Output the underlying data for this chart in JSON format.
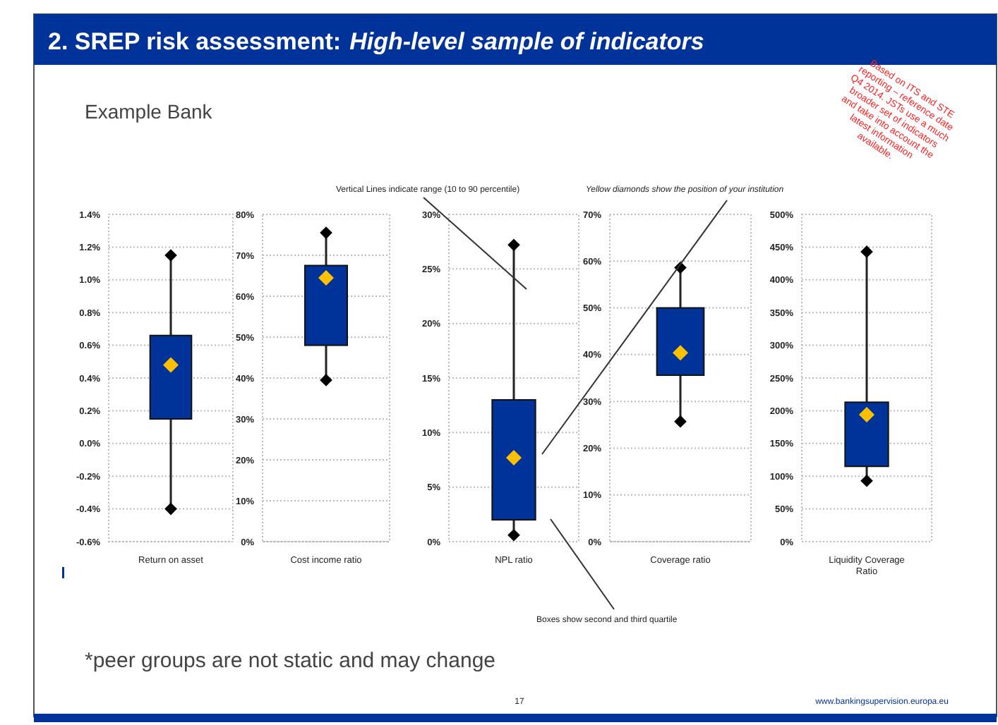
{
  "chart_data": [
    {
      "type": "box",
      "title": "2. SREP risk assessment: High-level sample of indicators",
      "subtitle": "Example Bank",
      "annotations": [
        "Vertical Lines indicate range (10 to 90 percentile)",
        "Yellow diamonds show the position of your institution",
        "Boxes show second and third quartile",
        "*peer groups are not static and may change",
        "17",
        "www.bankingsupervision.europa.eu",
        "Based on ITS and STE reporting – reference date Q4 2014. JSTs use a much broader set of indicators and take into account the latest information available."
      ],
      "categories": [
        "Return on asset"
      ],
      "ylim": [
        -0.6,
        1.4
      ],
      "yticks": [
        {
          "value": -0.6,
          "label": "-0.6%"
        },
        {
          "value": -0.4,
          "label": "-0.4%"
        },
        {
          "value": -0.2,
          "label": "-0.2%"
        },
        {
          "value": 0,
          "label": "0.0%"
        },
        {
          "value": 0.2,
          "label": "0.2%"
        },
        {
          "value": 0.4,
          "label": "0.4%"
        },
        {
          "value": 0.6,
          "label": "0.6%"
        },
        {
          "value": 0.8,
          "label": "0.8%"
        },
        {
          "value": 1.0,
          "label": "1.0%"
        },
        {
          "value": 1.2,
          "label": "1.2%"
        },
        {
          "value": 1.4,
          "label": "1.4%"
        }
      ],
      "grid": "y",
      "series": [
        {
          "color": "#003399",
          "boxes": [
            {
              "low": -0.4,
              "q1": 0.15,
              "q3": 0.66,
              "high": 1.15
            }
          ]
        },
        {
          "type": "scatter",
          "color": "#000000",
          "marker": "diamond",
          "x": [
            "Return on asset",
            "Return on asset"
          ],
          "values": [
            -0.4,
            1.15
          ]
        },
        {
          "type": "scatter",
          "color": "#ffc000",
          "marker": "diamond",
          "x": [
            "Return on asset"
          ],
          "values": [
            0.48
          ]
        }
      ]
    },
    {
      "type": "box",
      "categories": [
        "Cost income ratio"
      ],
      "ylim": [
        0,
        80
      ],
      "yticks": [
        {
          "value": 0,
          "label": "0%"
        },
        {
          "value": 10,
          "label": "10%"
        },
        {
          "value": 20,
          "label": "20%"
        },
        {
          "value": 30,
          "label": "30%"
        },
        {
          "value": 40,
          "label": "40%"
        },
        {
          "value": 50,
          "label": "50%"
        },
        {
          "value": 60,
          "label": "60%"
        },
        {
          "value": 70,
          "label": "70%"
        },
        {
          "value": 80,
          "label": "80%"
        }
      ],
      "grid": "y",
      "series": [
        {
          "color": "#003399",
          "boxes": [
            {
              "low": 39.5,
              "q1": 48,
              "q3": 67.5,
              "high": 75.5
            }
          ]
        },
        {
          "type": "scatter",
          "color": "#000000",
          "marker": "diamond",
          "x": [
            "Cost income ratio",
            "Cost income ratio"
          ],
          "values": [
            39.5,
            75.5
          ]
        },
        {
          "type": "scatter",
          "color": "#ffc000",
          "marker": "diamond",
          "x": [
            "Cost income ratio"
          ],
          "values": [
            64.5
          ]
        }
      ]
    },
    {
      "type": "box",
      "categories": [
        "NPL ratio"
      ],
      "ylim": [
        0,
        30
      ],
      "yticks": [
        {
          "value": 0,
          "label": "0%"
        },
        {
          "value": 5,
          "label": "5%"
        },
        {
          "value": 10,
          "label": "10%"
        },
        {
          "value": 15,
          "label": "15%"
        },
        {
          "value": 20,
          "label": "20%"
        },
        {
          "value": 25,
          "label": "25%"
        },
        {
          "value": 30,
          "label": "30%"
        }
      ],
      "grid": "y",
      "series": [
        {
          "color": "#003399",
          "boxes": [
            {
              "low": 0.6,
              "q1": 2,
              "q3": 13,
              "high": 27.2
            }
          ]
        },
        {
          "type": "scatter",
          "color": "#000000",
          "marker": "diamond",
          "x": [
            "NPL ratio",
            "NPL ratio"
          ],
          "values": [
            0.6,
            27.2
          ]
        },
        {
          "type": "scatter",
          "color": "#ffc000",
          "marker": "diamond",
          "x": [
            "NPL ratio"
          ],
          "values": [
            7.7
          ]
        }
      ]
    },
    {
      "type": "box",
      "categories": [
        "Coverage ratio"
      ],
      "ylim": [
        0,
        70
      ],
      "yticks": [
        {
          "value": 0,
          "label": "0%"
        },
        {
          "value": 10,
          "label": "10%"
        },
        {
          "value": 20,
          "label": "20%"
        },
        {
          "value": 30,
          "label": "30%"
        },
        {
          "value": 40,
          "label": "40%"
        },
        {
          "value": 50,
          "label": "50%"
        },
        {
          "value": 60,
          "label": "60%"
        },
        {
          "value": 70,
          "label": "70%"
        }
      ],
      "grid": "y",
      "series": [
        {
          "color": "#003399",
          "boxes": [
            {
              "low": 25.7,
              "q1": 35.6,
              "q3": 50,
              "high": 58.6
            }
          ]
        },
        {
          "type": "scatter",
          "color": "#000000",
          "marker": "diamond",
          "x": [
            "Coverage ratio",
            "Coverage ratio"
          ],
          "values": [
            25.7,
            58.6
          ]
        },
        {
          "type": "scatter",
          "color": "#ffc000",
          "marker": "diamond",
          "x": [
            "Coverage ratio"
          ],
          "values": [
            40.4
          ]
        }
      ]
    },
    {
      "type": "box",
      "categories": [
        "Liquidity Coverage Ratio"
      ],
      "ylim": [
        0,
        500
      ],
      "yticks": [
        {
          "value": 0,
          "label": "0%"
        },
        {
          "value": 50,
          "label": "50%"
        },
        {
          "value": 100,
          "label": "100%"
        },
        {
          "value": 150,
          "label": "150%"
        },
        {
          "value": 200,
          "label": "200%"
        },
        {
          "value": 250,
          "label": "250%"
        },
        {
          "value": 300,
          "label": "300%"
        },
        {
          "value": 350,
          "label": "350%"
        },
        {
          "value": 400,
          "label": "400%"
        },
        {
          "value": 450,
          "label": "450%"
        },
        {
          "value": 500,
          "label": "500%"
        }
      ],
      "grid": "y",
      "series": [
        {
          "color": "#003399",
          "boxes": [
            {
              "low": 93,
              "q1": 115,
              "q3": 213,
              "high": 443
            }
          ]
        },
        {
          "type": "scatter",
          "color": "#000000",
          "marker": "diamond",
          "x": [
            "Liquidity Coverage Ratio",
            "Liquidity Coverage Ratio"
          ],
          "values": [
            93,
            443
          ]
        },
        {
          "type": "scatter",
          "color": "#ffc000",
          "marker": "diamond",
          "x": [
            "Liquidity Coverage Ratio"
          ],
          "values": [
            194
          ]
        }
      ]
    }
  ]
}
